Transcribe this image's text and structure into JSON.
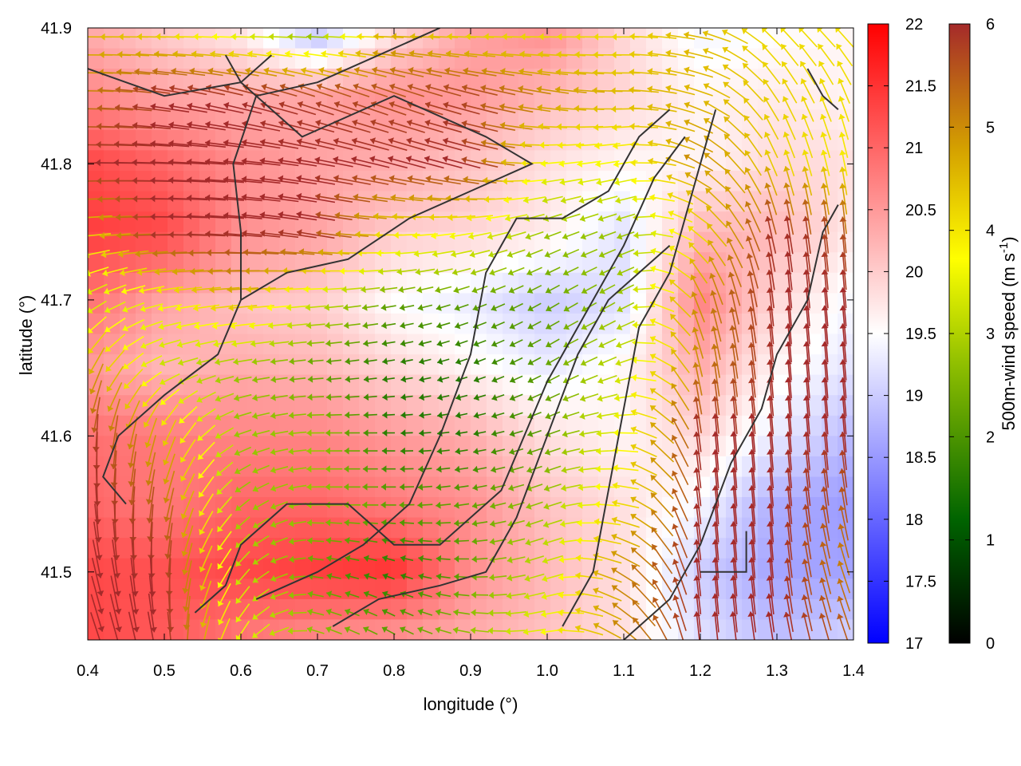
{
  "chart_data": {
    "type": "heatmap",
    "title": "",
    "xlabel": "longitude (°)",
    "ylabel": "latitude (°)",
    "xlim": [
      0.4,
      1.4
    ],
    "ylim": [
      41.45,
      41.9
    ],
    "x_ticks": [
      "0.4",
      "0.5",
      "0.6",
      "0.7",
      "0.8",
      "0.9",
      "1.0",
      "1.1",
      "1.2",
      "1.3",
      "1.4"
    ],
    "y_ticks": [
      "41.5",
      "41.6",
      "41.7",
      "41.8",
      "41.9"
    ],
    "grid": false,
    "heatmap": {
      "colorbar_range": [
        17,
        22
      ],
      "colorbar_ticks": [
        "17",
        "17.5",
        "18",
        "18.5",
        "19",
        "19.5",
        "20",
        "20.5",
        "21",
        "21.5",
        "22"
      ],
      "colormap": [
        "#0000ff",
        "#ffffff",
        "#ff0000"
      ],
      "lon_grid": [
        0.4,
        0.5,
        0.6,
        0.7,
        0.8,
        0.9,
        1.0,
        1.1,
        1.2,
        1.3,
        1.4
      ],
      "lat_grid": [
        41.9,
        41.85,
        41.8,
        41.75,
        41.7,
        41.65,
        41.6,
        41.55,
        41.5,
        41.45
      ],
      "values": [
        [
          20.3,
          20.0,
          19.7,
          18.8,
          19.8,
          20.4,
          20.6,
          19.9,
          19.4,
          19.5,
          19.6
        ],
        [
          20.7,
          20.4,
          20.3,
          20.4,
          20.6,
          20.5,
          20.2,
          19.9,
          19.6,
          19.7,
          19.6
        ],
        [
          21.3,
          21.0,
          20.6,
          20.4,
          20.3,
          20.1,
          19.8,
          19.6,
          19.6,
          19.9,
          19.8
        ],
        [
          21.4,
          21.3,
          20.6,
          20.4,
          20.0,
          19.9,
          19.7,
          19.2,
          20.2,
          20.2,
          19.7
        ],
        [
          20.9,
          20.4,
          20.1,
          20.0,
          19.5,
          19.3,
          19.0,
          19.2,
          20.7,
          19.9,
          19.4
        ],
        [
          20.5,
          20.2,
          20.3,
          20.2,
          19.9,
          19.6,
          19.3,
          19.6,
          20.3,
          19.6,
          19.2
        ],
        [
          20.9,
          20.8,
          20.7,
          20.7,
          20.5,
          20.3,
          19.8,
          19.6,
          19.9,
          19.3,
          18.8
        ],
        [
          21.0,
          20.8,
          21.0,
          21.0,
          20.8,
          20.6,
          20.1,
          19.8,
          19.4,
          18.7,
          18.5
        ],
        [
          21.3,
          21.2,
          21.3,
          21.4,
          21.5,
          20.6,
          20.2,
          19.8,
          19.0,
          18.6,
          18.6
        ],
        [
          21.3,
          21.1,
          20.8,
          20.6,
          20.5,
          20.3,
          20.1,
          19.8,
          19.2,
          18.9,
          19.1
        ]
      ]
    },
    "vectors": {
      "colorbar_label": "500m-wind speed (m s-1)",
      "colorbar_label_base": "500m-wind speed (m s",
      "colorbar_label_exp": "-1",
      "colorbar_label_tail": ")",
      "colorbar_range": [
        0,
        6
      ],
      "colorbar_ticks": [
        "0",
        "1",
        "2",
        "3",
        "4",
        "5",
        "6"
      ],
      "colormap": [
        "#000000",
        "#006400",
        "#8fbf00",
        "#ffff00",
        "#d4a000",
        "#a52a2a"
      ],
      "lon_grid": [
        0.4,
        0.5,
        0.6,
        0.7,
        0.8,
        0.9,
        1.0,
        1.1,
        1.2,
        1.3,
        1.4
      ],
      "lat_grid": [
        41.9,
        41.85,
        41.8,
        41.75,
        41.7,
        41.65,
        41.6,
        41.55,
        41.5,
        41.45
      ],
      "speed": [
        [
          4.5,
          4.0,
          3.0,
          2.0,
          4.5,
          4.0,
          4.0,
          4.0,
          4.5,
          4.0,
          4.0
        ],
        [
          5.0,
          6.0,
          6.0,
          5.8,
          5.6,
          5.8,
          5.0,
          4.5,
          4.5,
          4.2,
          4.0
        ],
        [
          6.0,
          6.0,
          6.0,
          6.0,
          6.0,
          6.0,
          3.5,
          3.5,
          5.0,
          4.2,
          3.8
        ],
        [
          4.0,
          6.0,
          6.0,
          6.0,
          4.0,
          3.5,
          2.5,
          2.5,
          4.0,
          6.0,
          5.5
        ],
        [
          3.0,
          3.5,
          4.5,
          3.0,
          2.0,
          2.0,
          2.0,
          2.5,
          5.0,
          6.0,
          6.0
        ],
        [
          5.0,
          3.0,
          2.5,
          2.0,
          1.5,
          1.5,
          2.0,
          3.0,
          5.0,
          6.0,
          6.0
        ],
        [
          6.0,
          4.5,
          2.5,
          2.5,
          1.5,
          1.5,
          2.0,
          3.5,
          6.0,
          6.0,
          6.0
        ],
        [
          6.0,
          5.5,
          2.5,
          2.5,
          2.0,
          2.0,
          2.5,
          4.0,
          6.0,
          6.0,
          5.5
        ],
        [
          6.0,
          6.0,
          3.0,
          2.0,
          1.5,
          2.0,
          3.0,
          5.0,
          6.0,
          6.0,
          5.0
        ],
        [
          6.0,
          6.0,
          3.5,
          2.5,
          2.0,
          2.5,
          3.5,
          5.0,
          6.0,
          6.0,
          5.5
        ]
      ],
      "direction_deg": [
        [
          180,
          180,
          180,
          180,
          180,
          180,
          180,
          180,
          170,
          135,
          135
        ],
        [
          180,
          170,
          165,
          160,
          160,
          165,
          170,
          180,
          160,
          120,
          110
        ],
        [
          180,
          178,
          175,
          170,
          165,
          165,
          185,
          190,
          150,
          110,
          100
        ],
        [
          185,
          180,
          175,
          170,
          180,
          190,
          200,
          200,
          140,
          100,
          95
        ],
        [
          210,
          190,
          185,
          185,
          190,
          200,
          210,
          210,
          110,
          95,
          95
        ],
        [
          250,
          200,
          190,
          185,
          190,
          200,
          210,
          200,
          100,
          95,
          95
        ],
        [
          270,
          250,
          200,
          180,
          180,
          190,
          200,
          180,
          95,
          95,
          95
        ],
        [
          275,
          260,
          220,
          180,
          180,
          190,
          200,
          170,
          95,
          95,
          100
        ],
        [
          285,
          270,
          230,
          170,
          160,
          180,
          200,
          150,
          95,
          95,
          110
        ],
        [
          290,
          280,
          240,
          160,
          150,
          170,
          190,
          140,
          95,
          100,
          110
        ]
      ]
    },
    "coastline_contour": [
      [
        [
          0.4,
          41.87
        ],
        [
          0.5,
          41.85
        ],
        [
          0.6,
          41.86
        ],
        [
          0.68,
          41.82
        ],
        [
          0.8,
          41.85
        ],
        [
          0.92,
          41.82
        ],
        [
          0.98,
          41.8
        ],
        [
          0.9,
          41.78
        ],
        [
          0.82,
          41.76
        ],
        [
          0.74,
          41.73
        ],
        [
          0.66,
          41.72
        ],
        [
          0.6,
          41.7
        ]
      ],
      [
        [
          0.6,
          41.7
        ],
        [
          0.57,
          41.66
        ],
        [
          0.5,
          41.63
        ],
        [
          0.44,
          41.6
        ],
        [
          0.42,
          41.57
        ],
        [
          0.45,
          41.55
        ]
      ],
      [
        [
          0.6,
          41.7
        ],
        [
          0.6,
          41.75
        ],
        [
          0.59,
          41.8
        ],
        [
          0.62,
          41.85
        ],
        [
          0.7,
          41.86
        ],
        [
          0.78,
          41.88
        ],
        [
          0.86,
          41.9
        ]
      ],
      [
        [
          0.54,
          41.47
        ],
        [
          0.58,
          41.49
        ],
        [
          0.6,
          41.52
        ],
        [
          0.66,
          41.55
        ],
        [
          0.74,
          41.55
        ],
        [
          0.8,
          41.52
        ],
        [
          0.86,
          41.52
        ],
        [
          0.94,
          41.56
        ],
        [
          1.0,
          41.64
        ],
        [
          1.06,
          41.7
        ],
        [
          1.1,
          41.74
        ],
        [
          1.14,
          41.79
        ],
        [
          1.18,
          41.82
        ]
      ],
      [
        [
          0.62,
          41.48
        ],
        [
          0.7,
          41.5
        ],
        [
          0.76,
          41.52
        ],
        [
          0.82,
          41.55
        ],
        [
          0.86,
          41.6
        ],
        [
          0.9,
          41.66
        ],
        [
          0.92,
          41.72
        ],
        [
          0.96,
          41.76
        ],
        [
          1.02,
          41.76
        ],
        [
          1.08,
          41.78
        ],
        [
          1.12,
          41.82
        ],
        [
          1.16,
          41.84
        ]
      ],
      [
        [
          0.72,
          41.46
        ],
        [
          0.78,
          41.48
        ],
        [
          0.86,
          41.49
        ],
        [
          0.92,
          41.5
        ],
        [
          0.96,
          41.54
        ],
        [
          1.0,
          41.6
        ],
        [
          1.04,
          41.66
        ],
        [
          1.08,
          41.7
        ],
        [
          1.12,
          41.72
        ],
        [
          1.16,
          41.74
        ]
      ],
      [
        [
          1.1,
          41.45
        ],
        [
          1.16,
          41.48
        ],
        [
          1.2,
          41.52
        ],
        [
          1.24,
          41.58
        ],
        [
          1.28,
          41.62
        ],
        [
          1.3,
          41.66
        ],
        [
          1.34,
          41.7
        ],
        [
          1.36,
          41.75
        ],
        [
          1.38,
          41.77
        ]
      ],
      [
        [
          1.02,
          41.46
        ],
        [
          1.06,
          41.5
        ],
        [
          1.08,
          41.56
        ],
        [
          1.1,
          41.62
        ],
        [
          1.12,
          41.68
        ],
        [
          1.16,
          41.72
        ],
        [
          1.18,
          41.76
        ],
        [
          1.2,
          41.8
        ],
        [
          1.22,
          41.84
        ]
      ],
      [
        [
          1.2,
          41.5
        ],
        [
          1.26,
          41.5
        ],
        [
          1.26,
          41.53
        ]
      ],
      [
        [
          1.34,
          41.87
        ],
        [
          1.36,
          41.85
        ],
        [
          1.38,
          41.84
        ]
      ],
      [
        [
          0.58,
          41.88
        ],
        [
          0.6,
          41.86
        ],
        [
          0.64,
          41.88
        ]
      ]
    ]
  }
}
